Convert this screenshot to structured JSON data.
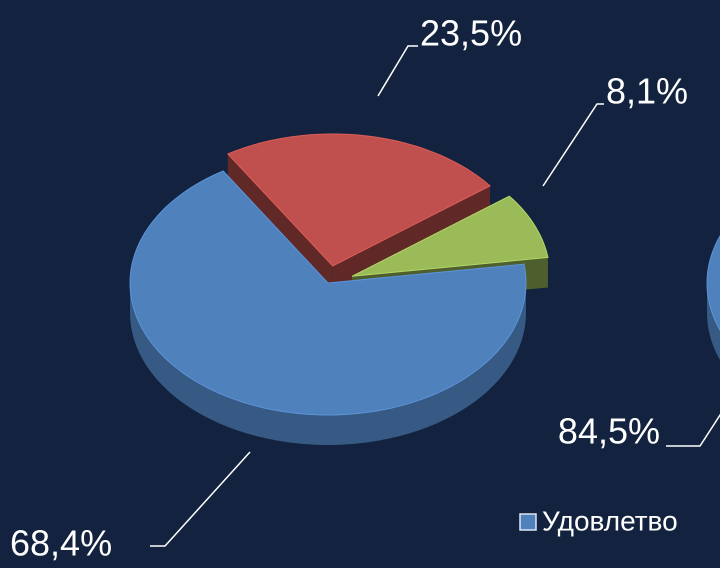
{
  "chart_data": [
    {
      "type": "pie3d",
      "values": [
        68.4,
        23.5,
        8.1
      ],
      "value_labels": [
        "68,4%",
        "23,5%",
        "8,1%"
      ],
      "colors": [
        "#4f81bd",
        "#c0504d",
        "#9bbb59"
      ]
    },
    {
      "type": "pie3d",
      "categories": [
        "Удовлетво"
      ],
      "values": [
        84.5
      ],
      "value_labels": [
        "84,5%"
      ],
      "colors": [
        "#4f81bd"
      ],
      "legend": true
    }
  ]
}
